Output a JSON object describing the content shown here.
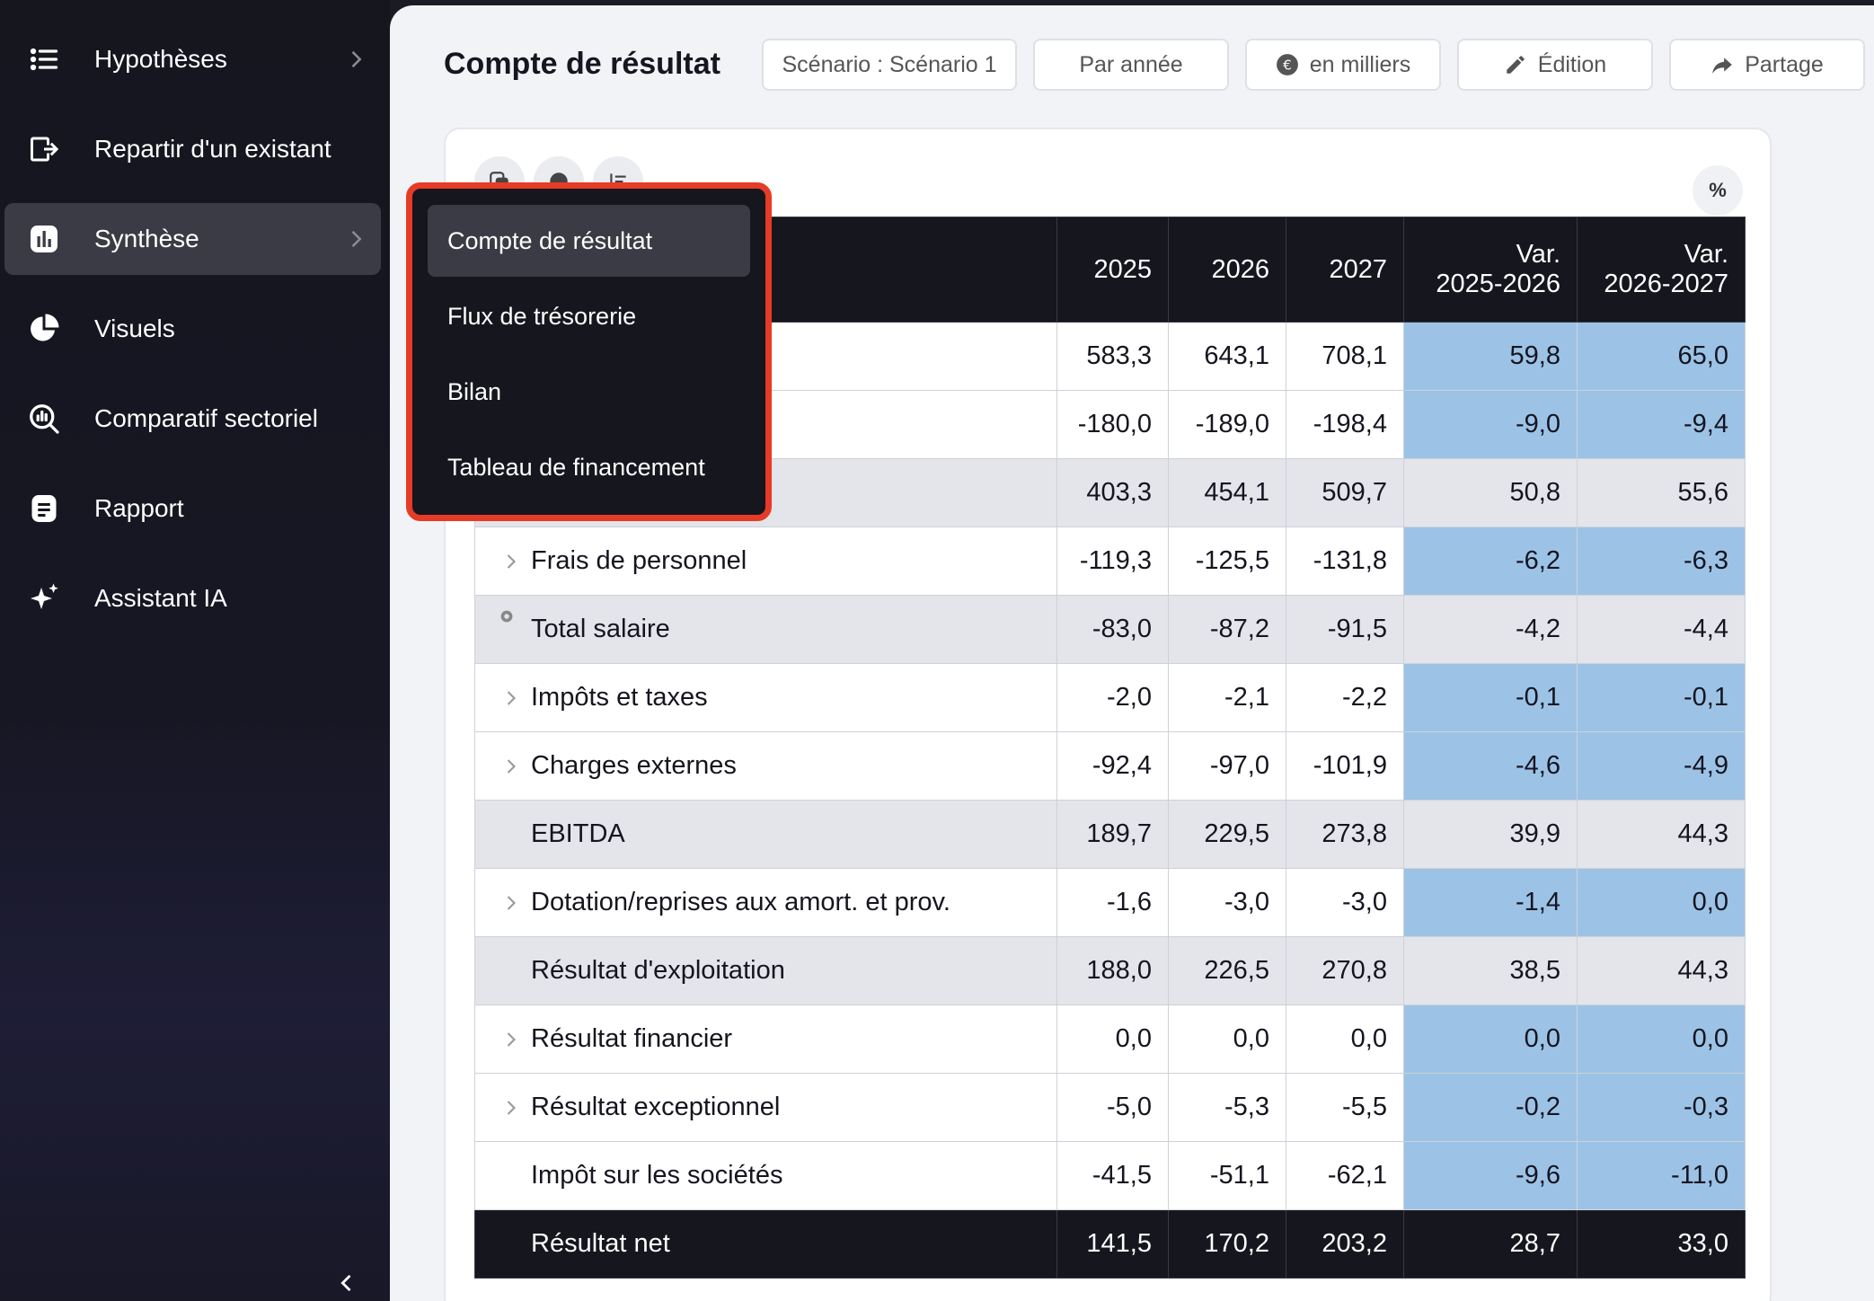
{
  "sidebar": {
    "items": [
      {
        "label": "Hypothèses",
        "icon": "list-icon"
      },
      {
        "label": "Repartir d'un existant",
        "icon": "file-export-icon"
      },
      {
        "label": "Synthèse",
        "icon": "chart-bar-icon"
      },
      {
        "label": "Visuels",
        "icon": "pie-chart-icon"
      },
      {
        "label": "Comparatif sectoriel",
        "icon": "search-chart-icon"
      },
      {
        "label": "Rapport",
        "icon": "document-icon"
      },
      {
        "label": "Assistant IA",
        "icon": "sparkle-icon"
      }
    ]
  },
  "header": {
    "title": "Compte de résultat",
    "scenario_label": "Scénario : Scénario 1",
    "period_label": "Par année",
    "unit_label": "en milliers",
    "edit_label": "Édition",
    "share_label": "Partage",
    "percent_label": "%"
  },
  "dropdown": {
    "items": [
      "Compte de résultat",
      "Flux de trésorerie",
      "Bilan",
      "Tableau de financement"
    ],
    "selected": "Compte de résultat"
  },
  "table": {
    "headers": [
      "",
      "2025",
      "2026",
      "2027",
      "Var.\n2025-2026",
      "Var.\n2026-2027"
    ],
    "header_years": [
      "2025",
      "2026",
      "2027"
    ],
    "header_var": [
      {
        "l1": "Var.",
        "l2": "2025-2026"
      },
      {
        "l1": "Var.",
        "l2": "2026-2027"
      }
    ],
    "rows": [
      {
        "label": "",
        "values": [
          "583,3",
          "643,1",
          "708,1",
          "59,8",
          "65,0"
        ]
      },
      {
        "label": "",
        "values": [
          "-180,0",
          "-189,0",
          "-198,4",
          "-9,0",
          "-9,4"
        ]
      },
      {
        "label": "",
        "values": [
          "403,3",
          "454,1",
          "509,7",
          "50,8",
          "55,6"
        ]
      },
      {
        "label": "Frais de personnel",
        "values": [
          "-119,3",
          "-125,5",
          "-131,8",
          "-6,2",
          "-6,3"
        ]
      },
      {
        "label": "Total salaire",
        "values": [
          "-83,0",
          "-87,2",
          "-91,5",
          "-4,2",
          "-4,4"
        ]
      },
      {
        "label": "Impôts et taxes",
        "values": [
          "-2,0",
          "-2,1",
          "-2,2",
          "-0,1",
          "-0,1"
        ]
      },
      {
        "label": "Charges externes",
        "values": [
          "-92,4",
          "-97,0",
          "-101,9",
          "-4,6",
          "-4,9"
        ]
      },
      {
        "label": "EBITDA",
        "values": [
          "189,7",
          "229,5",
          "273,8",
          "39,9",
          "44,3"
        ]
      },
      {
        "label": "Dotation/reprises aux amort. et prov.",
        "values": [
          "-1,6",
          "-3,0",
          "-3,0",
          "-1,4",
          "0,0"
        ]
      },
      {
        "label": "Résultat d'exploitation",
        "values": [
          "188,0",
          "226,5",
          "270,8",
          "38,5",
          "44,3"
        ]
      },
      {
        "label": "Résultat financier",
        "values": [
          "0,0",
          "0,0",
          "0,0",
          "0,0",
          "0,0"
        ]
      },
      {
        "label": "Résultat exceptionnel",
        "values": [
          "-5,0",
          "-5,3",
          "-5,5",
          "-0,2",
          "-0,3"
        ]
      },
      {
        "label": "Impôt sur les sociétés",
        "values": [
          "-41,5",
          "-51,1",
          "-62,1",
          "-9,6",
          "-11,0"
        ]
      },
      {
        "label": "Résultat net",
        "values": [
          "141,5",
          "170,2",
          "203,2",
          "28,7",
          "33,0"
        ]
      }
    ]
  },
  "colors": {
    "sidebar_bg": "#16161f",
    "active_item": "#3b3b46",
    "highlight_border": "#e63b26",
    "variance_cell": "#9cc3e6",
    "subtotal_row": "#e3e5ea"
  }
}
